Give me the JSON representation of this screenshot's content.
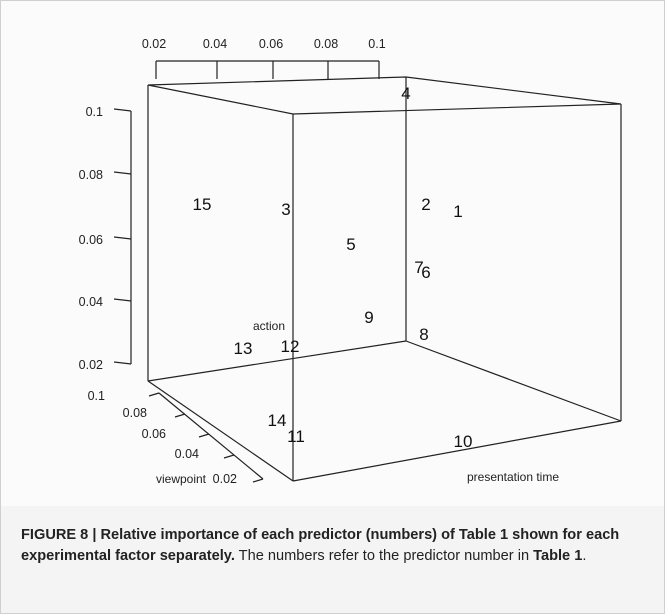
{
  "figure": {
    "top_axis_ticks": [
      "0.02",
      "0.04",
      "0.06",
      "0.08",
      "0.1"
    ],
    "left_axis_ticks": [
      "0.1",
      "0.08",
      "0.06",
      "0.04",
      "0.02"
    ],
    "viewpoint_axis_ticks": [
      "0.1",
      "0.08",
      "0.06",
      "0.04",
      "0.02"
    ],
    "axis_labels": {
      "action": "action",
      "viewpoint": "viewpoint",
      "presentation_time": "presentation time"
    },
    "points": [
      15,
      3,
      2,
      1,
      5,
      7,
      6,
      9,
      8,
      13,
      12,
      14,
      11,
      10,
      4
    ]
  },
  "caption": {
    "label": "FIGURE 8 | Relative importance of each predictor (numbers) of Table 1 shown for each experimental factor separately.",
    "text": " The numbers refer to the predictor number in ",
    "ref": "Table 1",
    "end": "."
  }
}
